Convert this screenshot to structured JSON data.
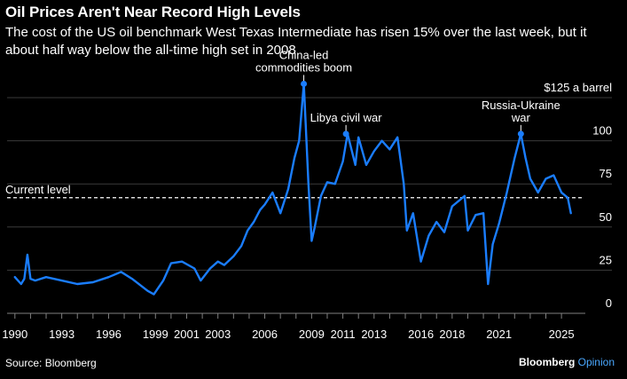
{
  "header": {
    "title": "Oil Prices Aren't Near Record High Levels",
    "subtitle": "The cost of the US oil benchmark West Texas Intermediate has risen 15% over the last week, but it about half way below the all-time high set in 2008"
  },
  "footer": {
    "source": "Source: Bloomberg",
    "brand_main": "Bloomberg",
    "brand_sub": "Opinion"
  },
  "colors": {
    "background": "#000000",
    "line": "#1a7dff",
    "grid": "#3a3a3a",
    "text": "#ffffff",
    "brand_accent": "#4aa8ff"
  },
  "chart_data": {
    "type": "line",
    "title": "Oil Prices Aren't Near Record High Levels",
    "xlabel": "",
    "ylabel": "",
    "xlim": [
      1989.5,
      2026.3
    ],
    "ylim": [
      0,
      125
    ],
    "x_ticks": [
      "1990",
      "1993",
      "1996",
      "1999",
      "2001",
      "2003",
      "2006",
      "2009",
      "2011",
      "2013",
      "2016",
      "2018",
      "2021",
      "2025"
    ],
    "x_tick_values": [
      1990,
      1993,
      1996,
      1999,
      2001,
      2003,
      2006,
      2009,
      2011,
      2013,
      2016,
      2018,
      2021,
      2025
    ],
    "y_ticks": [
      0,
      25,
      50,
      75,
      100,
      125
    ],
    "y_tick_labels": [
      "0",
      "25",
      "50",
      "75",
      "100",
      "$125 a barrel"
    ],
    "grid": true,
    "reference_line": {
      "label": "Current level",
      "value": 67
    },
    "annotations": [
      {
        "text_lines": [
          "China-led",
          "commodities boom"
        ],
        "x": 2008.5,
        "y": 133
      },
      {
        "text_lines": [
          "Libya civil war"
        ],
        "x": 2011.2,
        "y": 104
      },
      {
        "text_lines": [
          "Russia-Ukraine",
          "war"
        ],
        "x": 2022.4,
        "y": 104
      }
    ],
    "series": [
      {
        "x": [
          1990.0,
          1990.4,
          1990.6,
          1990.8,
          1991.0,
          1991.3,
          1992.0,
          1993.0,
          1994.0,
          1995.0,
          1996.0,
          1996.8,
          1997.5,
          1998.5,
          1998.9,
          1999.5,
          2000.0,
          2000.7,
          2001.5,
          2001.9,
          2002.5,
          2003.0,
          2003.4,
          2004.0,
          2004.5,
          2004.9,
          2005.3,
          2005.7,
          2006.0,
          2006.5,
          2007.0,
          2007.5,
          2007.9,
          2008.2,
          2008.5,
          2008.8,
          2009.0,
          2009.2,
          2009.6,
          2010.0,
          2010.5,
          2011.0,
          2011.3,
          2011.8,
          2012.0,
          2012.5,
          2013.0,
          2013.5,
          2014.0,
          2014.5,
          2014.9,
          2015.1,
          2015.5,
          2016.0,
          2016.5,
          2017.0,
          2017.5,
          2018.0,
          2018.8,
          2019.0,
          2019.5,
          2020.0,
          2020.3,
          2020.6,
          2021.0,
          2021.5,
          2022.0,
          2022.4,
          2022.7,
          2023.0,
          2023.5,
          2024.0,
          2024.5,
          2025.0,
          2025.4,
          2025.6
        ],
        "y": [
          21,
          17,
          20,
          34,
          20,
          19,
          21,
          19,
          17,
          18,
          21,
          24,
          20,
          13,
          11,
          19,
          29,
          30,
          26,
          19,
          26,
          30,
          28,
          33,
          39,
          48,
          53,
          60,
          63,
          70,
          58,
          72,
          90,
          100,
          133,
          75,
          42,
          50,
          68,
          76,
          75,
          88,
          104,
          86,
          102,
          86,
          94,
          100,
          95,
          102,
          75,
          48,
          58,
          30,
          45,
          53,
          47,
          62,
          68,
          48,
          57,
          58,
          17,
          40,
          52,
          70,
          90,
          104,
          90,
          78,
          70,
          78,
          80,
          70,
          67,
          58
        ]
      }
    ]
  }
}
